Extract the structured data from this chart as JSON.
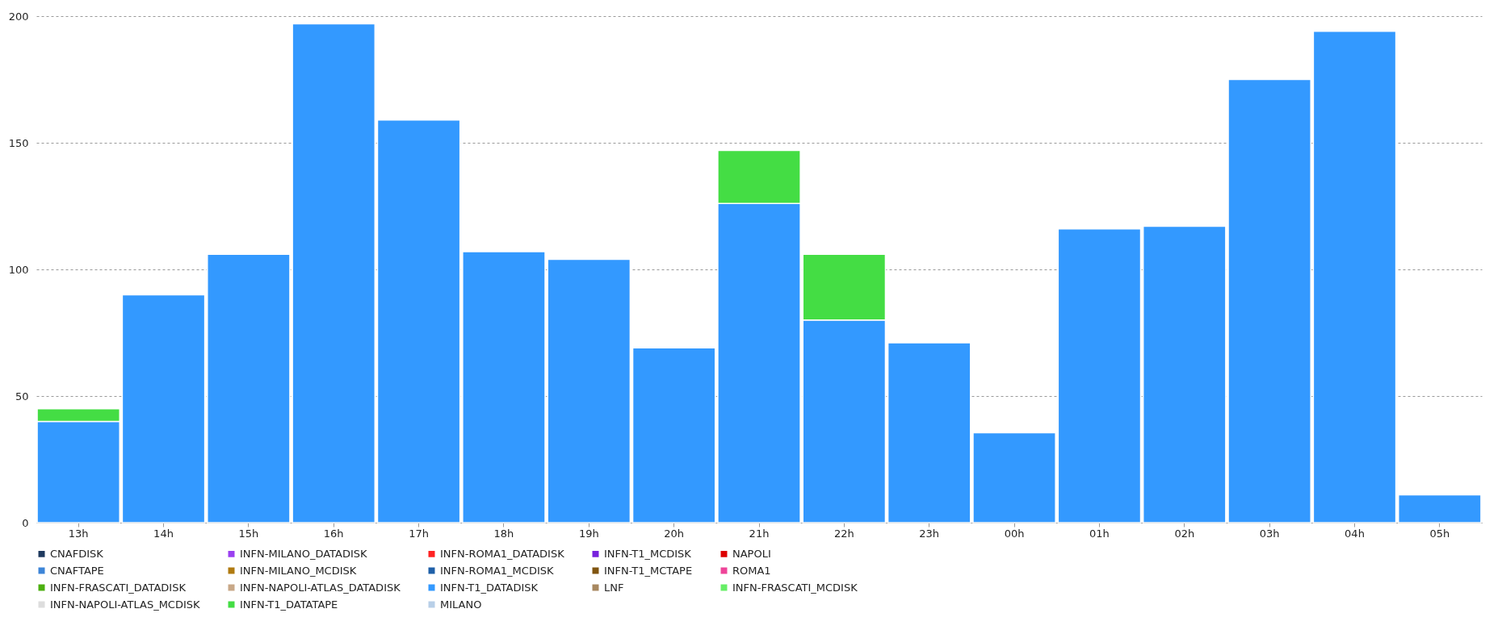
{
  "chart_data": {
    "type": "bar",
    "stacked": true,
    "categories": [
      "13h",
      "14h",
      "15h",
      "16h",
      "17h",
      "18h",
      "19h",
      "20h",
      "21h",
      "22h",
      "23h",
      "00h",
      "01h",
      "02h",
      "03h",
      "04h",
      "05h"
    ],
    "ylim": [
      0,
      200
    ],
    "yticks": [
      0,
      50,
      100,
      150,
      200
    ],
    "grid": "y",
    "legend": "bottom",
    "series": [
      {
        "name": "CNAFDISK",
        "color": "#1f3a5f",
        "values": [
          null,
          null,
          null,
          null,
          null,
          null,
          null,
          null,
          null,
          null,
          null,
          null,
          null,
          null,
          null,
          null,
          null
        ]
      },
      {
        "name": "CNAFTAPE",
        "color": "#3d85d8",
        "values": [
          null,
          null,
          null,
          null,
          null,
          null,
          null,
          null,
          null,
          null,
          null,
          null,
          null,
          null,
          null,
          null,
          null
        ]
      },
      {
        "name": "INFN-FRASCATI_DATADISK",
        "color": "#4caf10",
        "values": [
          null,
          null,
          null,
          null,
          null,
          null,
          null,
          null,
          null,
          null,
          null,
          null,
          null,
          null,
          null,
          null,
          null
        ]
      },
      {
        "name": "INFN-FRASCATI_MCDISK",
        "color": "#66ee66",
        "values": [
          null,
          null,
          null,
          null,
          null,
          null,
          null,
          null,
          null,
          null,
          null,
          null,
          null,
          null,
          null,
          null,
          null
        ]
      },
      {
        "name": "INFN-MILANO_DATADISK",
        "color": "#9a40f0",
        "values": [
          null,
          null,
          null,
          null,
          null,
          null,
          null,
          null,
          null,
          null,
          null,
          null,
          null,
          null,
          null,
          null,
          null
        ]
      },
      {
        "name": "INFN-MILANO_MCDISK",
        "color": "#b07a10",
        "values": [
          null,
          null,
          null,
          null,
          null,
          null,
          null,
          null,
          null,
          null,
          null,
          null,
          null,
          null,
          null,
          null,
          null
        ]
      },
      {
        "name": "INFN-NAPOLI-ATLAS_DATADISK",
        "color": "#c8a888",
        "values": [
          null,
          null,
          null,
          null,
          null,
          null,
          null,
          null,
          null,
          null,
          null,
          null,
          null,
          null,
          null,
          null,
          null
        ]
      },
      {
        "name": "INFN-NAPOLI-ATLAS_MCDISK",
        "color": "#dddddd",
        "values": [
          null,
          null,
          null,
          null,
          null,
          null,
          null,
          null,
          null,
          null,
          null,
          null,
          null,
          null,
          null,
          null,
          null
        ]
      },
      {
        "name": "INFN-ROMA1_DATADISK",
        "color": "#ff2222",
        "values": [
          null,
          null,
          null,
          null,
          null,
          null,
          null,
          null,
          null,
          null,
          null,
          null,
          null,
          null,
          null,
          null,
          null
        ]
      },
      {
        "name": "INFN-ROMA1_MCDISK",
        "color": "#1f60a8",
        "values": [
          null,
          null,
          null,
          null,
          null,
          null,
          null,
          null,
          null,
          null,
          null,
          null,
          null,
          null,
          null,
          null,
          null
        ]
      },
      {
        "name": "INFN-T1_DATADISK",
        "color": "#3399ff",
        "values": [
          40,
          90,
          106,
          197,
          159,
          107,
          104,
          69,
          126,
          80,
          71,
          35.5,
          116,
          117,
          175,
          194,
          11
        ]
      },
      {
        "name": "INFN-T1_DATATAPE",
        "color": "#44dd44",
        "values": [
          5,
          null,
          null,
          null,
          null,
          null,
          null,
          null,
          21,
          26,
          null,
          null,
          null,
          null,
          null,
          null,
          null
        ]
      },
      {
        "name": "INFN-T1_MCDISK",
        "color": "#7722dd",
        "values": [
          null,
          null,
          null,
          null,
          null,
          null,
          null,
          null,
          null,
          null,
          null,
          null,
          null,
          null,
          null,
          null,
          null
        ]
      },
      {
        "name": "INFN-T1_MCTAPE",
        "color": "#805510",
        "values": [
          null,
          null,
          null,
          null,
          null,
          null,
          null,
          null,
          null,
          null,
          null,
          null,
          null,
          null,
          null,
          null,
          null
        ]
      },
      {
        "name": "LNF",
        "color": "#a88860",
        "values": [
          null,
          null,
          null,
          null,
          null,
          null,
          null,
          null,
          null,
          null,
          null,
          null,
          null,
          null,
          null,
          null,
          null
        ]
      },
      {
        "name": "MILANO",
        "color": "#b8cfe8",
        "values": [
          null,
          null,
          null,
          null,
          null,
          null,
          null,
          null,
          null,
          null,
          null,
          null,
          null,
          null,
          null,
          null,
          null
        ]
      },
      {
        "name": "NAPOLI",
        "color": "#dd0000",
        "values": [
          null,
          null,
          null,
          null,
          null,
          null,
          null,
          null,
          null,
          null,
          null,
          null,
          null,
          null,
          null,
          null,
          null
        ]
      },
      {
        "name": "ROMA1",
        "color": "#ee4499",
        "values": [
          null,
          null,
          null,
          null,
          null,
          null,
          null,
          null,
          null,
          null,
          null,
          null,
          null,
          null,
          null,
          null,
          null
        ]
      }
    ]
  }
}
